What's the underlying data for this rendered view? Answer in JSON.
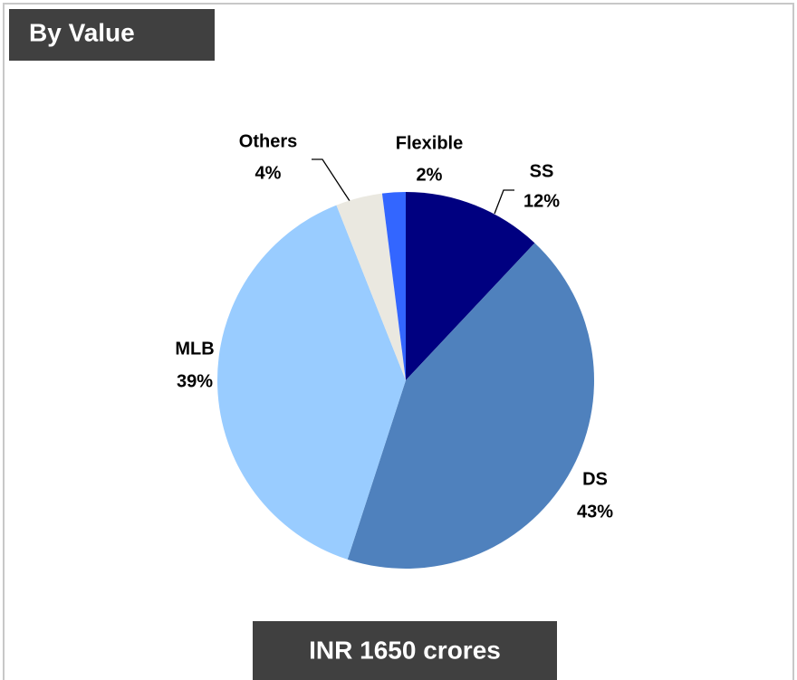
{
  "chart_data": {
    "type": "pie",
    "title": "By Value",
    "annotation": "INR 1650 crores",
    "categories": [
      "SS",
      "DS",
      "MLB",
      "Others",
      "Flexible"
    ],
    "values": [
      12,
      43,
      39,
      4,
      2
    ],
    "value_labels": [
      "12%",
      "43%",
      "39%",
      "4%",
      "2%"
    ],
    "colors": [
      "#000080",
      "#4f81bd",
      "#99ccff",
      "#eae8e0",
      "#3366ff"
    ]
  }
}
